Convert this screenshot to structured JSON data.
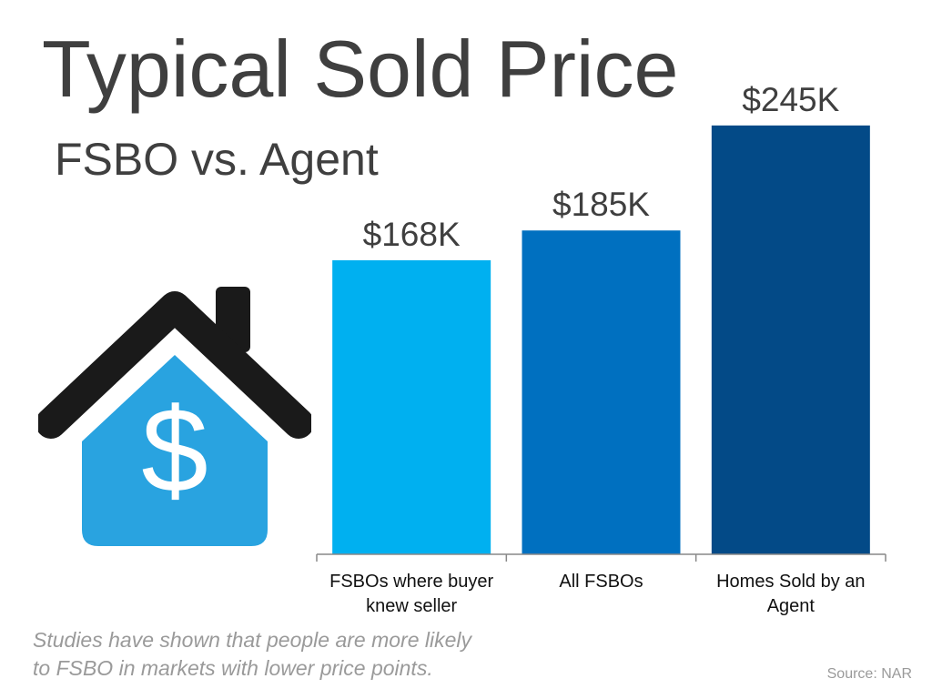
{
  "title": "Typical Sold Price",
  "subtitle": "FSBO vs. Agent",
  "note_lines": [
    "Studies have shown that people are more likely",
    "to FSBO in markets with lower price points."
  ],
  "source": "Source: NAR",
  "icons": {
    "house": "house-dollar-icon"
  },
  "colors": {
    "title": "#3f3f3f",
    "house_roof": "#1a1a1a",
    "house_body": "#29a3e0",
    "muted_text": "#9a9a9a"
  },
  "chart_data": {
    "type": "bar",
    "title": "Typical Sold Price",
    "subtitle": "FSBO vs. Agent",
    "categories": [
      [
        "FSBOs where buyer",
        "knew seller"
      ],
      [
        "All FSBOs"
      ],
      [
        "Homes Sold by an",
        "Agent"
      ]
    ],
    "values": [
      168,
      185,
      245
    ],
    "value_labels": [
      "$168K",
      "$185K",
      "$245K"
    ],
    "unit": "thousands of US dollars",
    "bar_colors": [
      "#00b0f0",
      "#0070c0",
      "#034a87"
    ],
    "ylim": [
      0,
      260
    ],
    "grid": false,
    "legend": "none"
  }
}
